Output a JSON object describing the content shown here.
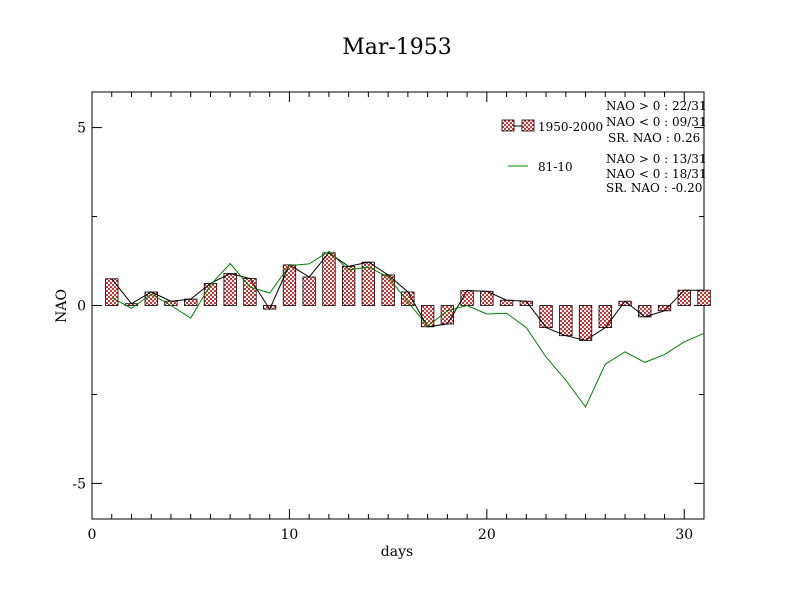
{
  "chart_data": {
    "type": "bar",
    "title": "Mar-1953",
    "xlabel": "days",
    "ylabel": "NAO",
    "xlim": [
      0,
      31
    ],
    "ylim": [
      -6,
      6
    ],
    "xticks": [
      0,
      10,
      20,
      30
    ],
    "yticks": [
      -5,
      0,
      5
    ],
    "x": [
      1,
      2,
      3,
      4,
      5,
      6,
      7,
      8,
      9,
      10,
      11,
      12,
      13,
      14,
      15,
      16,
      17,
      18,
      19,
      20,
      21,
      22,
      23,
      24,
      25,
      26,
      27,
      28,
      29,
      30,
      31
    ],
    "series": [
      {
        "name": "1950-2000",
        "kind": "bar",
        "values": [
          0.75,
          0.05,
          0.38,
          0.12,
          0.18,
          0.62,
          0.9,
          0.76,
          -0.1,
          1.14,
          0.8,
          1.48,
          1.1,
          1.22,
          0.86,
          0.38,
          -0.6,
          -0.52,
          0.42,
          0.4,
          0.15,
          0.12,
          -0.62,
          -0.85,
          -0.98,
          -0.62,
          0.12,
          -0.32,
          -0.15,
          0.43,
          0.43
        ],
        "color": "#e06060"
      },
      {
        "name": "81-10",
        "kind": "line",
        "values": [
          0.22,
          -0.08,
          0.32,
          0.0,
          -0.35,
          0.58,
          1.18,
          0.52,
          0.35,
          1.12,
          1.17,
          1.52,
          1.0,
          1.08,
          0.8,
          0.1,
          -0.58,
          -0.15,
          0.0,
          -0.24,
          -0.22,
          -0.62,
          -1.45,
          -2.1,
          -2.85,
          -1.65,
          -1.3,
          -1.6,
          -1.38,
          -1.02,
          -0.78
        ],
        "color": "#008000"
      }
    ],
    "legend": {
      "placement": "top-right",
      "items": [
        {
          "label": "1950-2000",
          "stats": [
            "NAO > 0 : 22/31",
            "NAO < 0 : 09/31",
            "SR. NAO :  0.26"
          ]
        },
        {
          "label": "81-10",
          "stats": [
            "NAO > 0 : 13/31",
            "NAO < 0 : 18/31",
            "SR. NAO : -0.20"
          ]
        }
      ]
    },
    "grid": false
  }
}
